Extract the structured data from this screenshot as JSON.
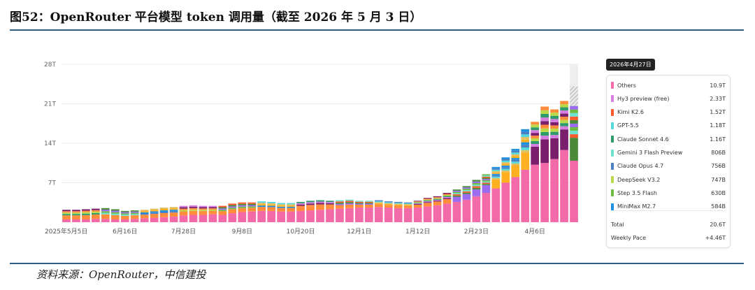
{
  "title": "图52：OpenRouter 平台模型 token 调用量（截至 2026 年 5 月 3 日）",
  "source": "资料来源：OpenRouter，中信建投",
  "chart_data": {
    "type": "bar",
    "stacked": true,
    "yticks": [
      "28T",
      "21T",
      "14T",
      "7T"
    ],
    "ytick_values": [
      28,
      21,
      14,
      7
    ],
    "ylim": [
      0,
      28
    ],
    "ylabel": "",
    "xlabel": "",
    "xtick_labels": [
      "2025年5月5日",
      "6月16日",
      "7月28日",
      "9月8日",
      "10月20日",
      "12月1日",
      "1月12日",
      "2月23日",
      "4月6日"
    ],
    "xtick_indices": [
      0,
      6,
      12,
      18,
      24,
      30,
      36,
      42,
      48
    ],
    "weeks": 53,
    "totals": [
      2.2,
      2.2,
      2.3,
      2.4,
      2.5,
      2.3,
      2.0,
      2.1,
      2.2,
      2.4,
      2.6,
      2.7,
      2.9,
      3.0,
      2.9,
      2.9,
      2.9,
      3.3,
      3.5,
      3.5,
      3.7,
      3.6,
      3.4,
      3.4,
      3.6,
      3.8,
      3.9,
      3.8,
      3.9,
      4.0,
      3.8,
      3.8,
      3.9,
      3.7,
      3.6,
      3.5,
      3.8,
      4.3,
      4.6,
      5.2,
      5.8,
      6.4,
      7.5,
      8.5,
      9.8,
      11.5,
      13.0,
      16.5,
      17.8,
      20.5,
      20.0,
      21.5,
      20.6
    ],
    "others": [
      0.5,
      0.5,
      0.5,
      0.6,
      0.6,
      0.5,
      0.5,
      0.6,
      0.7,
      0.8,
      0.9,
      1.0,
      1.2,
      1.3,
      1.3,
      1.4,
      1.3,
      1.6,
      1.8,
      1.9,
      2.0,
      2.0,
      1.9,
      1.9,
      2.0,
      2.1,
      2.2,
      2.3,
      2.4,
      2.5,
      2.6,
      2.6,
      2.7,
      2.6,
      2.5,
      2.5,
      2.6,
      2.8,
      3.0,
      3.3,
      3.6,
      4.0,
      4.6,
      5.2,
      6.0,
      7.0,
      8.0,
      9.3,
      10.2,
      10.5,
      11.2,
      12.8,
      10.9
    ],
    "projected": {
      "index": 52,
      "value": 28.0
    },
    "highlight_date": "2026年4月27日",
    "series": [
      {
        "name": "Others",
        "color": "#f26aa8",
        "value": "10.9T"
      },
      {
        "name": "Hy3 preview (free)",
        "color": "#d47fe0",
        "value": "2.33T"
      },
      {
        "name": "Kimi K2.6",
        "color": "#ff5a2b",
        "value": "1.52T"
      },
      {
        "name": "GPT-5.5",
        "color": "#52d8dc",
        "value": "1.18T"
      },
      {
        "name": "Claude Sonnet 4.6",
        "color": "#2e9b6b",
        "value": "1.16T"
      },
      {
        "name": "Gemini 3 Flash Preview",
        "color": "#6fe1cf",
        "value": "806B"
      },
      {
        "name": "Claude Opus 4.7",
        "color": "#4a7fc0",
        "value": "756B"
      },
      {
        "name": "DeepSeek V3.2",
        "color": "#b9d94a",
        "value": "747B"
      },
      {
        "name": "Step 3.5 Flash",
        "color": "#6dbb45",
        "value": "630B"
      },
      {
        "name": "MiniMax M2.7",
        "color": "#1e90e0",
        "value": "584B"
      }
    ],
    "summary": [
      {
        "label": "Total",
        "value": "20.6T"
      },
      {
        "label": "Weekly Pace",
        "value": "+4.46T"
      }
    ]
  }
}
